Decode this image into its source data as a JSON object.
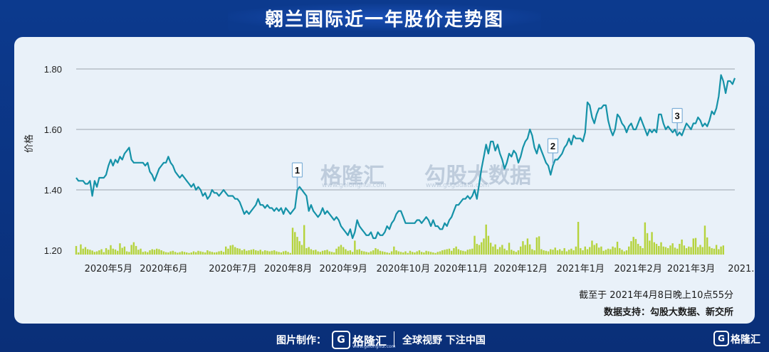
{
  "title": "翱兰国际近一年股价走势图",
  "colors": {
    "background": "#0c3a8e",
    "card": "#e9f1f9",
    "price_line": "#1592a8",
    "volume_bar": "#b5d33c",
    "grid": "#9aa3ad",
    "marker_fill": "#ffffff",
    "marker_border": "#7fb0d8"
  },
  "watermark": {
    "gelonghui": "格隆汇",
    "gelonghui_url": "www.gelonghui.com",
    "gogudata": "勾股大数据",
    "gogudata_url": "www.gogudata.com"
  },
  "notes": {
    "timestamp": "截至于 2021年4月8日晚上10点55分",
    "source": "数据支持：勾股大数据、新交所"
  },
  "footer": {
    "made_by": "图片制作：",
    "brand": "格隆汇",
    "brand_url": "www.gelonghui.com",
    "slogan": "全球视野 下注中国",
    "corner_brand": "格隆汇"
  },
  "chart_data": {
    "type": "line",
    "ylabel": "价格",
    "yticks": [
      "1.20",
      "1.40",
      "1.60",
      "1.80"
    ],
    "ylim": [
      1.2,
      1.8
    ],
    "grid": true,
    "x_tick_labels": [
      "2020年5月",
      "2020年6月",
      "2020年7月",
      "2020年8月",
      "2020年9月",
      "2020年10月",
      "2020年11月",
      "2020年12月",
      "2021年1月",
      "2021年2月",
      "2021年3月",
      "2021..."
    ],
    "x_tick_index": [
      14,
      38,
      68,
      92,
      116,
      142,
      167,
      193,
      219,
      244,
      267,
      290
    ],
    "price_series": {
      "values": [
        1.44,
        1.43,
        1.43,
        1.43,
        1.42,
        1.42,
        1.43,
        1.38,
        1.43,
        1.41,
        1.44,
        1.44,
        1.44,
        1.45,
        1.48,
        1.5,
        1.48,
        1.5,
        1.49,
        1.51,
        1.5,
        1.52,
        1.53,
        1.54,
        1.5,
        1.49,
        1.49,
        1.49,
        1.49,
        1.49,
        1.48,
        1.49,
        1.46,
        1.45,
        1.43,
        1.45,
        1.47,
        1.48,
        1.49,
        1.49,
        1.51,
        1.49,
        1.48,
        1.46,
        1.45,
        1.44,
        1.45,
        1.44,
        1.43,
        1.42,
        1.41,
        1.42,
        1.4,
        1.41,
        1.4,
        1.38,
        1.39,
        1.37,
        1.38,
        1.4,
        1.39,
        1.39,
        1.38,
        1.39,
        1.4,
        1.39,
        1.38,
        1.38,
        1.38,
        1.37,
        1.37,
        1.36,
        1.34,
        1.32,
        1.33,
        1.32,
        1.33,
        1.34,
        1.35,
        1.37,
        1.35,
        1.35,
        1.34,
        1.35,
        1.34,
        1.34,
        1.33,
        1.34,
        1.33,
        1.34,
        1.32,
        1.34,
        1.33,
        1.32,
        1.33,
        1.34,
        1.4,
        1.41,
        1.4,
        1.39,
        1.38,
        1.33,
        1.35,
        1.33,
        1.32,
        1.31,
        1.32,
        1.34,
        1.32,
        1.33,
        1.32,
        1.31,
        1.3,
        1.31,
        1.3,
        1.28,
        1.27,
        1.26,
        1.25,
        1.27,
        1.24,
        1.26,
        1.3,
        1.28,
        1.27,
        1.26,
        1.25,
        1.25,
        1.26,
        1.24,
        1.24,
        1.26,
        1.25,
        1.25,
        1.26,
        1.28,
        1.27,
        1.29,
        1.3,
        1.32,
        1.33,
        1.33,
        1.31,
        1.29,
        1.29,
        1.29,
        1.29,
        1.29,
        1.3,
        1.3,
        1.29,
        1.3,
        1.31,
        1.3,
        1.28,
        1.3,
        1.28,
        1.28,
        1.27,
        1.27,
        1.29,
        1.28,
        1.3,
        1.31,
        1.33,
        1.35,
        1.35,
        1.36,
        1.37,
        1.37,
        1.38,
        1.37,
        1.38,
        1.4,
        1.37,
        1.42,
        1.47,
        1.51,
        1.55,
        1.52,
        1.56,
        1.56,
        1.53,
        1.55,
        1.52,
        1.5,
        1.47,
        1.49,
        1.52,
        1.51,
        1.53,
        1.52,
        1.49,
        1.51,
        1.54,
        1.56,
        1.57,
        1.6,
        1.58,
        1.54,
        1.52,
        1.55,
        1.53,
        1.51,
        1.49,
        1.48,
        1.45,
        1.48,
        1.5,
        1.5,
        1.51,
        1.52,
        1.54,
        1.55,
        1.57,
        1.55,
        1.58,
        1.57,
        1.57,
        1.57,
        1.56,
        1.59,
        1.69,
        1.68,
        1.64,
        1.62,
        1.65,
        1.67,
        1.67,
        1.68,
        1.68,
        1.63,
        1.6,
        1.58,
        1.6,
        1.65,
        1.64,
        1.62,
        1.61,
        1.59,
        1.61,
        1.62,
        1.6,
        1.6,
        1.62,
        1.64,
        1.62,
        1.6,
        1.58,
        1.6,
        1.59,
        1.6,
        1.59,
        1.65,
        1.65,
        1.62,
        1.6,
        1.61,
        1.6,
        1.59,
        1.6,
        1.58,
        1.59,
        1.58,
        1.6,
        1.62,
        1.61,
        1.6,
        1.62,
        1.62,
        1.64,
        1.63,
        1.61,
        1.62,
        1.61,
        1.63,
        1.66,
        1.65,
        1.67,
        1.71,
        1.78,
        1.76,
        1.72,
        1.76,
        1.76,
        1.75,
        1.77
      ]
    },
    "volume_series": {
      "values": [
        0.32,
        0.08,
        0.38,
        0.22,
        0.28,
        0.2,
        0.18,
        0.15,
        0.1,
        0.12,
        0.16,
        0.2,
        0.09,
        0.24,
        0.18,
        0.35,
        0.22,
        0.19,
        0.14,
        0.42,
        0.25,
        0.3,
        0.12,
        0.1,
        0.36,
        0.46,
        0.32,
        0.18,
        0.22,
        0.1,
        0.12,
        0.09,
        0.16,
        0.2,
        0.18,
        0.22,
        0.2,
        0.16,
        0.12,
        0.09,
        0.08,
        0.12,
        0.14,
        0.1,
        0.07,
        0.09,
        0.12,
        0.1,
        0.08,
        0.06,
        0.08,
        0.12,
        0.09,
        0.14,
        0.12,
        0.1,
        0.08,
        0.16,
        0.12,
        0.1,
        0.08,
        0.09,
        0.12,
        0.14,
        0.1,
        0.3,
        0.22,
        0.34,
        0.36,
        0.28,
        0.24,
        0.22,
        0.16,
        0.2,
        0.14,
        0.16,
        0.18,
        0.2,
        0.16,
        0.14,
        0.18,
        0.12,
        0.16,
        0.14,
        0.12,
        0.14,
        0.16,
        0.12,
        0.1,
        0.08,
        0.12,
        0.14,
        0.1,
        0.06,
        1.0,
        0.84,
        0.66,
        0.5,
        0.36,
        1.1,
        0.24,
        0.28,
        0.2,
        0.16,
        0.18,
        0.12,
        0.1,
        0.14,
        0.16,
        0.18,
        0.12,
        0.1,
        0.08,
        0.22,
        0.3,
        0.36,
        0.28,
        0.2,
        0.14,
        0.16,
        0.1,
        0.52,
        0.18,
        0.2,
        0.14,
        0.12,
        0.1,
        0.08,
        0.12,
        0.16,
        0.24,
        0.2,
        0.14,
        0.12,
        0.1,
        0.08,
        0.06,
        0.12,
        0.3,
        0.16,
        0.12,
        0.1,
        0.08,
        0.12,
        0.06,
        0.14,
        0.1,
        0.08,
        0.12,
        0.16,
        0.1,
        0.08,
        0.14,
        0.12,
        0.1,
        0.08,
        0.06,
        0.1,
        0.12,
        0.16,
        0.18,
        0.2,
        0.22,
        0.14,
        0.24,
        0.3,
        0.2,
        0.16,
        0.14,
        0.12,
        0.18,
        0.2,
        0.22,
        0.7,
        0.4,
        0.36,
        0.46,
        0.6,
        1.12,
        0.7,
        0.44,
        0.3,
        0.38,
        0.2,
        0.28,
        0.36,
        0.22,
        0.16,
        0.44,
        0.18,
        0.14,
        0.1,
        0.16,
        0.3,
        0.5,
        0.36,
        0.6,
        0.38,
        0.2,
        0.16,
        0.64,
        0.68,
        0.2,
        0.16,
        0.14,
        0.12,
        0.2,
        0.18,
        0.26,
        0.16,
        0.2,
        0.14,
        0.24,
        0.12,
        0.18,
        0.22,
        0.16,
        0.3,
        1.22,
        0.24,
        0.16,
        0.3,
        0.2,
        0.28,
        0.52,
        0.36,
        0.42,
        0.26,
        0.3,
        0.14,
        0.18,
        0.22,
        0.2,
        0.3,
        0.26,
        0.48,
        0.24,
        0.18,
        0.12,
        0.16,
        0.3,
        0.5,
        0.66,
        0.58,
        0.4,
        0.32,
        0.24,
        1.2,
        0.8,
        0.52,
        0.84,
        0.46,
        0.4,
        0.32,
        0.46,
        0.3,
        0.28,
        0.24,
        0.34,
        0.42,
        0.26,
        0.22,
        0.4,
        0.56,
        0.34,
        0.24,
        0.3,
        0.28,
        0.6,
        0.62,
        0.28,
        0.36,
        0.28,
        1.08,
        0.64,
        0.3,
        0.24,
        0.22,
        0.36,
        0.2,
        0.3,
        0.34
      ]
    },
    "annotations": [
      {
        "label": "1",
        "index": 96
      },
      {
        "label": "2",
        "index": 207
      },
      {
        "label": "3",
        "index": 261
      }
    ]
  }
}
